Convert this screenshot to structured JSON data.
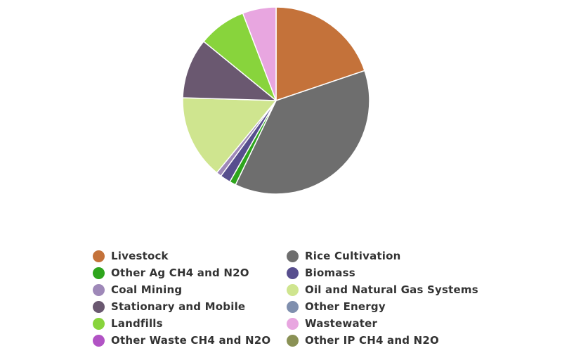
{
  "chart_data": {
    "type": "pie",
    "title": "",
    "center": [
      393,
      143
    ],
    "radius": 133,
    "start_angle_deg": 0,
    "direction": "clockwise",
    "legend_position": "bottom",
    "slices": [
      {
        "label": "Livestock",
        "value": 19.8,
        "color": "#c4723a"
      },
      {
        "label": "Rice Cultivation",
        "value": 37.3,
        "color": "#6e6e6e"
      },
      {
        "label": "Other Ag CH4 and N2O",
        "value": 1.1,
        "color": "#2ea51d"
      },
      {
        "label": "Biomass",
        "value": 1.8,
        "color": "#574e8e"
      },
      {
        "label": "Coal Mining",
        "value": 0.9,
        "color": "#9e88b8"
      },
      {
        "label": "Oil and Natural Gas Systems",
        "value": 14.5,
        "color": "#cfe58f"
      },
      {
        "label": "Other Energy",
        "value": 0,
        "color": "#7f8fae"
      },
      {
        "label": "Stationary and Mobile",
        "value": 10.4,
        "color": "#6a5870"
      },
      {
        "label": "Landfills",
        "value": 8.3,
        "color": "#88d43c"
      },
      {
        "label": "Wastewater",
        "value": 5.8,
        "color": "#e8a6e0"
      },
      {
        "label": "Other Waste CH4 and N2O",
        "value": 0,
        "color": "#b153c4"
      },
      {
        "label": "Other IP CH4 and N2O",
        "value": 0,
        "color": "#8a9155"
      }
    ]
  },
  "legend": {
    "items": [
      {
        "label": "Livestock",
        "color": "#c4723a",
        "col": 0,
        "row": 0
      },
      {
        "label": "Rice Cultivation",
        "color": "#6e6e6e",
        "col": 1,
        "row": 0
      },
      {
        "label": "Other Ag CH4 and N2O",
        "color": "#2ea51d",
        "col": 0,
        "row": 1
      },
      {
        "label": "Biomass",
        "color": "#574e8e",
        "col": 1,
        "row": 1
      },
      {
        "label": "Coal Mining",
        "color": "#9e88b8",
        "col": 0,
        "row": 2
      },
      {
        "label": "Oil and Natural Gas Systems",
        "color": "#cfe58f",
        "col": 1,
        "row": 2
      },
      {
        "label": "Stationary and Mobile",
        "color": "#6a5870",
        "col": 0,
        "row": 3
      },
      {
        "label": "Other Energy",
        "color": "#7f8fae",
        "col": 1,
        "row": 3
      },
      {
        "label": "Landfills",
        "color": "#88d43c",
        "col": 0,
        "row": 4
      },
      {
        "label": "Wastewater",
        "color": "#e8a6e0",
        "col": 1,
        "row": 4
      },
      {
        "label": "Other Waste CH4 and N2O",
        "color": "#b153c4",
        "col": 0,
        "row": 5
      },
      {
        "label": "Other IP CH4 and N2O",
        "color": "#8a9155",
        "col": 1,
        "row": 5
      }
    ]
  }
}
